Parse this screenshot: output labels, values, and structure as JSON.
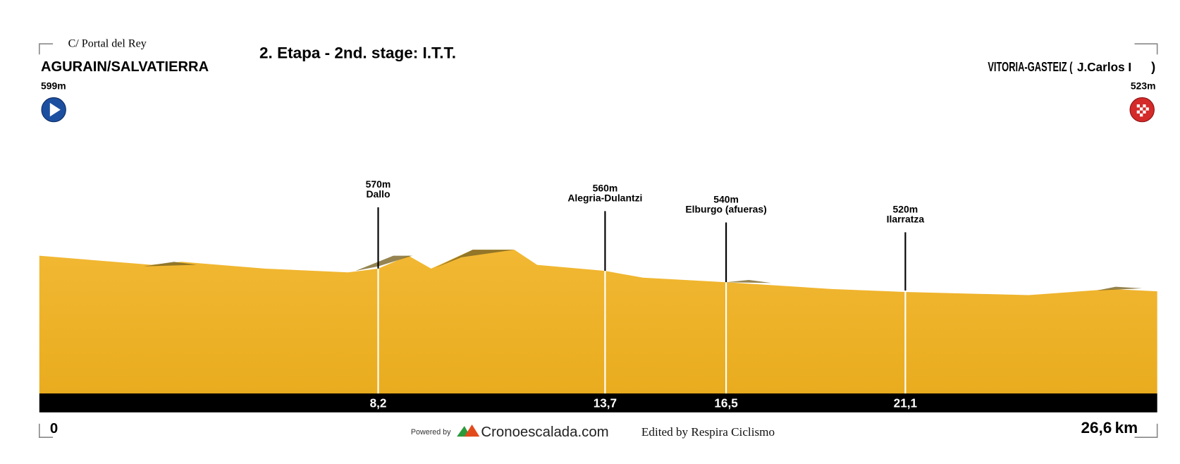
{
  "header": {
    "start_street": "C/ Portal del Rey",
    "start_town": "AGURAIN/SALVATIERRA",
    "start_elevation": "599m",
    "title": "2. Etapa - 2nd. stage: I.T.T.",
    "finish_town": "VITORIA-GASTEIZ (",
    "finish_street": "J.Carlos I",
    "finish_close": ")",
    "finish_elevation": "523m"
  },
  "waypoints": [
    {
      "elevation": "570m",
      "name": "Dallo",
      "km": "8,2"
    },
    {
      "elevation": "560m",
      "name": "Alegria-Dulantzi",
      "km": "13,7"
    },
    {
      "elevation": "540m",
      "name": "Elburgo (afueras)",
      "km": "16,5"
    },
    {
      "elevation": "520m",
      "name": "Ilarratza",
      "km": "21,1"
    }
  ],
  "distance": {
    "start": "0",
    "end": "26,6",
    "unit": "km"
  },
  "footer": {
    "powered": "Powered by",
    "brand": "Cronoescalada.com",
    "edited": "Edited by Respira Ciclismo"
  }
}
